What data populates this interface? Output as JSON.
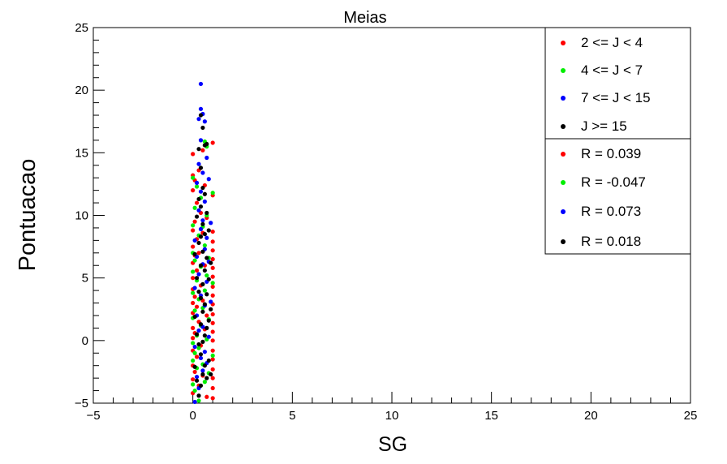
{
  "chart_data": {
    "type": "scatter",
    "title": "Meias",
    "xlabel": "SG",
    "ylabel": "Pontuacao",
    "xlim": [
      -5,
      25
    ],
    "ylim": [
      -5,
      25
    ],
    "xticks": [
      -5,
      0,
      5,
      10,
      15,
      20,
      25
    ],
    "yticks": [
      -5,
      0,
      5,
      10,
      15,
      20,
      25
    ],
    "xtick_labels": [
      "−5",
      "0",
      "5",
      "10",
      "15",
      "20",
      "25"
    ],
    "ytick_labels": [
      "−5",
      "0",
      "5",
      "10",
      "15",
      "20",
      "25"
    ],
    "grid": false,
    "legend_position": "top-right",
    "series": [
      {
        "name": "2 <= J < 4",
        "color": "#ff0000",
        "points": [
          [
            0.0,
            14.9
          ],
          [
            0.0,
            13.2
          ],
          [
            0.0,
            12.0
          ],
          [
            0.0,
            8.8
          ],
          [
            0.0,
            7.5
          ],
          [
            0.0,
            6.2
          ],
          [
            0.0,
            5.0
          ],
          [
            0.0,
            4.1
          ],
          [
            0.0,
            3.0
          ],
          [
            0.0,
            2.2
          ],
          [
            0.0,
            1.0
          ],
          [
            0.0,
            0.2
          ],
          [
            0.0,
            -0.8
          ],
          [
            0.0,
            -2.0
          ],
          [
            0.0,
            -3.1
          ],
          [
            0.0,
            -4.2
          ],
          [
            0.1,
            12.8
          ],
          [
            0.1,
            9.5
          ],
          [
            0.1,
            6.8
          ],
          [
            0.1,
            3.5
          ],
          [
            0.1,
            0.6
          ],
          [
            0.1,
            -2.5
          ],
          [
            0.2,
            11.0
          ],
          [
            0.2,
            8.1
          ],
          [
            0.2,
            5.6
          ],
          [
            0.2,
            2.7
          ],
          [
            0.2,
            -1.3
          ],
          [
            0.3,
            13.6
          ],
          [
            0.3,
            7.0
          ],
          [
            0.3,
            1.5
          ],
          [
            0.3,
            -3.6
          ],
          [
            0.4,
            10.2
          ],
          [
            0.4,
            4.4
          ],
          [
            0.4,
            -0.4
          ],
          [
            0.5,
            15.2
          ],
          [
            0.5,
            8.6
          ],
          [
            0.5,
            3.2
          ],
          [
            0.5,
            -2.8
          ],
          [
            0.6,
            12.4
          ],
          [
            0.6,
            6.0
          ],
          [
            0.6,
            0.9
          ],
          [
            0.7,
            9.8
          ],
          [
            0.7,
            2.0
          ],
          [
            0.7,
            -4.5
          ],
          [
            1.0,
            15.8
          ],
          [
            1.0,
            11.6
          ],
          [
            1.0,
            8.7
          ],
          [
            1.0,
            7.9
          ],
          [
            1.0,
            7.2
          ],
          [
            1.0,
            6.5
          ],
          [
            1.0,
            5.8
          ],
          [
            1.0,
            5.1
          ],
          [
            1.0,
            4.3
          ],
          [
            1.0,
            3.6
          ],
          [
            1.0,
            2.9
          ],
          [
            1.0,
            2.1
          ],
          [
            1.0,
            1.4
          ],
          [
            1.0,
            0.7
          ],
          [
            1.0,
            0.0
          ],
          [
            1.0,
            -0.8
          ],
          [
            1.0,
            -1.5
          ],
          [
            1.0,
            -2.3
          ],
          [
            1.0,
            -3.0
          ],
          [
            1.0,
            -3.8
          ],
          [
            1.0,
            -4.6
          ]
        ]
      },
      {
        "name": "4 <= J < 7",
        "color": "#00ee00",
        "points": [
          [
            0.0,
            13.0
          ],
          [
            0.0,
            9.2
          ],
          [
            0.0,
            7.0
          ],
          [
            0.0,
            5.5
          ],
          [
            0.0,
            3.8
          ],
          [
            0.0,
            1.8
          ],
          [
            0.0,
            -0.2
          ],
          [
            0.0,
            -1.6
          ],
          [
            0.0,
            -3.5
          ],
          [
            0.1,
            10.6
          ],
          [
            0.1,
            6.4
          ],
          [
            0.1,
            2.4
          ],
          [
            0.1,
            -1.0
          ],
          [
            0.1,
            -4.0
          ],
          [
            0.2,
            12.3
          ],
          [
            0.2,
            4.8
          ],
          [
            0.2,
            0.4
          ],
          [
            0.2,
            -2.2
          ],
          [
            0.3,
            8.4
          ],
          [
            0.3,
            3.3
          ],
          [
            0.3,
            -0.6
          ],
          [
            0.3,
            -4.8
          ],
          [
            0.4,
            11.4
          ],
          [
            0.4,
            5.9
          ],
          [
            0.4,
            1.2
          ],
          [
            0.5,
            9.1
          ],
          [
            0.5,
            2.6
          ],
          [
            0.5,
            -1.9
          ],
          [
            0.6,
            15.9
          ],
          [
            0.6,
            7.6
          ],
          [
            0.6,
            4.0
          ],
          [
            0.6,
            -3.3
          ],
          [
            0.7,
            15.5
          ],
          [
            0.7,
            10.0
          ],
          [
            0.7,
            5.2
          ],
          [
            0.7,
            0.1
          ],
          [
            0.8,
            6.6
          ],
          [
            0.8,
            1.7
          ],
          [
            0.8,
            -2.6
          ],
          [
            1.0,
            11.8
          ],
          [
            1.0,
            4.6
          ],
          [
            1.0,
            -1.2
          ]
        ]
      },
      {
        "name": "7 <= J < 15",
        "color": "#0000ff",
        "points": [
          [
            0.1,
            8.0
          ],
          [
            0.1,
            4.2
          ],
          [
            0.1,
            -0.5
          ],
          [
            0.1,
            -4.9
          ],
          [
            0.2,
            12.6
          ],
          [
            0.2,
            6.7
          ],
          [
            0.2,
            2.0
          ],
          [
            0.2,
            -2.9
          ],
          [
            0.3,
            17.7
          ],
          [
            0.3,
            14.1
          ],
          [
            0.3,
            10.4
          ],
          [
            0.3,
            5.3
          ],
          [
            0.3,
            0.8
          ],
          [
            0.3,
            -3.8
          ],
          [
            0.4,
            20.5
          ],
          [
            0.4,
            18.5
          ],
          [
            0.4,
            16.0
          ],
          [
            0.4,
            11.9
          ],
          [
            0.4,
            8.9
          ],
          [
            0.4,
            3.6
          ],
          [
            0.4,
            -1.4
          ],
          [
            0.5,
            18.1
          ],
          [
            0.5,
            13.4
          ],
          [
            0.5,
            9.6
          ],
          [
            0.5,
            6.1
          ],
          [
            0.5,
            1.1
          ],
          [
            0.5,
            -2.4
          ],
          [
            0.6,
            17.5
          ],
          [
            0.6,
            11.1
          ],
          [
            0.6,
            7.3
          ],
          [
            0.6,
            2.8
          ],
          [
            0.6,
            -0.9
          ],
          [
            0.7,
            14.6
          ],
          [
            0.7,
            8.2
          ],
          [
            0.7,
            4.7
          ],
          [
            0.7,
            -1.8
          ],
          [
            0.8,
            12.9
          ],
          [
            0.8,
            6.3
          ],
          [
            0.8,
            0.3
          ],
          [
            0.9,
            9.4
          ],
          [
            0.9,
            3.1
          ]
        ]
      },
      {
        "name": "J >= 15",
        "color": "#000000",
        "points": [
          [
            0.1,
            6.9
          ],
          [
            0.1,
            1.9
          ],
          [
            0.1,
            -2.1
          ],
          [
            0.2,
            9.9
          ],
          [
            0.2,
            5.0
          ],
          [
            0.2,
            0.5
          ],
          [
            0.2,
            -3.2
          ],
          [
            0.3,
            15.3
          ],
          [
            0.3,
            11.3
          ],
          [
            0.3,
            7.8
          ],
          [
            0.3,
            3.9
          ],
          [
            0.3,
            -0.3
          ],
          [
            0.3,
            -4.4
          ],
          [
            0.4,
            18.0
          ],
          [
            0.4,
            13.8
          ],
          [
            0.4,
            10.7
          ],
          [
            0.4,
            8.3
          ],
          [
            0.4,
            6.0
          ],
          [
            0.4,
            3.4
          ],
          [
            0.4,
            1.3
          ],
          [
            0.4,
            -1.1
          ],
          [
            0.4,
            -3.6
          ],
          [
            0.5,
            17.0
          ],
          [
            0.5,
            12.2
          ],
          [
            0.5,
            9.3
          ],
          [
            0.5,
            7.1
          ],
          [
            0.5,
            4.5
          ],
          [
            0.5,
            2.3
          ],
          [
            0.5,
            -0.1
          ],
          [
            0.5,
            -2.7
          ],
          [
            0.6,
            15.6
          ],
          [
            0.6,
            11.7
          ],
          [
            0.6,
            8.5
          ],
          [
            0.6,
            5.6
          ],
          [
            0.6,
            2.9
          ],
          [
            0.6,
            0.4
          ],
          [
            0.6,
            -2.0
          ],
          [
            0.7,
            15.7
          ],
          [
            0.7,
            10.2
          ],
          [
            0.7,
            6.6
          ],
          [
            0.7,
            3.7
          ],
          [
            0.7,
            1.0
          ],
          [
            0.7,
            -3.0
          ],
          [
            0.8,
            8.8
          ],
          [
            0.8,
            4.9
          ],
          [
            0.8,
            1.6
          ],
          [
            0.8,
            -1.6
          ],
          [
            0.9,
            6.2
          ],
          [
            0.9,
            2.5
          ],
          [
            0.9,
            -2.7
          ]
        ]
      }
    ],
    "legend": {
      "group_entries": [
        {
          "label": "2 <= J < 4",
          "color": "#ff0000"
        },
        {
          "label": "4 <= J < 7",
          "color": "#00ee00"
        },
        {
          "label": "7 <= J < 15",
          "color": "#0000ff"
        },
        {
          "label": "J >= 15",
          "color": "#000000"
        }
      ],
      "correlation_entries": [
        {
          "label": "R = 0.039",
          "color": "#ff0000"
        },
        {
          "label": "R = -0.047",
          "color": "#00ee00"
        },
        {
          "label": "R = 0.073",
          "color": "#0000ff"
        },
        {
          "label": "R = 0.018",
          "color": "#000000"
        }
      ]
    }
  }
}
